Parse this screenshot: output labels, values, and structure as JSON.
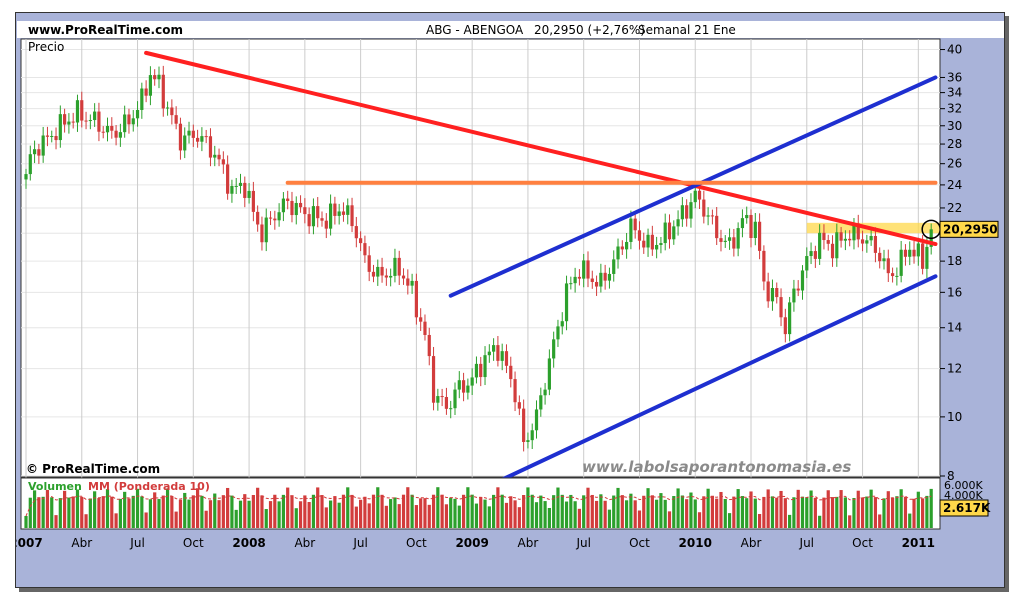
{
  "header": {
    "site": "www.ProRealTime.com",
    "instrument": "ABG - ABENGOA",
    "quote": "20,2950 (+2,76%)",
    "period": "Semanal 21 Ene"
  },
  "price_panel": {
    "label": "Precio",
    "copyright": "© ProRealTime.com",
    "watermark": "www.labolsaporantonomasia.es",
    "last_price_label": "20,2950"
  },
  "volume_panel": {
    "label_volume": "Volumen",
    "label_mm": "MM (Ponderada 10)",
    "tick_labels": [
      "6.000K",
      "4.000K"
    ],
    "last_volume_label": "2.617K"
  },
  "colors": {
    "up_candle": "#2ca02c",
    "down_candle": "#d23c3c",
    "resistance_trend": "#ff2020",
    "channel": "#1e2fd0",
    "horizontal_level": "#ff8040",
    "highlight_box": "#ffd84a",
    "background": "#a9b3d9",
    "panel": "#ffffff"
  },
  "chart_data": {
    "type": "candlestick",
    "title": "ABG - ABENGOA",
    "y_scale": "log",
    "ylim": [
      8,
      41
    ],
    "y_ticks": [
      40,
      36,
      34,
      32,
      30,
      28,
      26,
      24,
      22,
      20,
      18,
      16,
      14,
      12,
      10,
      8
    ],
    "x_tick_labels": [
      "2007",
      "Abr",
      "Jul",
      "Oct",
      "2008",
      "Abr",
      "Jul",
      "Oct",
      "2009",
      "Abr",
      "Jul",
      "Oct",
      "2010",
      "Abr",
      "Jul",
      "Oct",
      "2011"
    ],
    "x_tick_weeks": [
      0,
      13,
      26,
      39,
      52,
      65,
      78,
      91,
      104,
      117,
      130,
      143,
      156,
      169,
      182,
      195,
      208
    ],
    "week_count": 212,
    "close_anchors": [
      [
        0,
        25.0
      ],
      [
        2,
        27.5
      ],
      [
        5,
        28.5
      ],
      [
        8,
        30.0
      ],
      [
        12,
        31.5
      ],
      [
        16,
        30.5
      ],
      [
        20,
        29.0
      ],
      [
        24,
        30.5
      ],
      [
        27,
        33.0
      ],
      [
        29,
        36.5
      ],
      [
        31,
        35.0
      ],
      [
        33,
        32.0
      ],
      [
        36,
        28.5
      ],
      [
        40,
        29.0
      ],
      [
        44,
        27.0
      ],
      [
        48,
        23.5
      ],
      [
        51,
        24.0
      ],
      [
        53,
        21.5
      ],
      [
        55,
        20.0
      ],
      [
        58,
        21.5
      ],
      [
        61,
        22.5
      ],
      [
        65,
        21.5
      ],
      [
        70,
        21.0
      ],
      [
        73,
        22.0
      ],
      [
        76,
        21.0
      ],
      [
        79,
        18.0
      ],
      [
        82,
        17.0
      ],
      [
        87,
        17.5
      ],
      [
        90,
        16.0
      ],
      [
        93,
        13.5
      ],
      [
        95,
        11.0
      ],
      [
        98,
        10.3
      ],
      [
        100,
        11.0
      ],
      [
        104,
        11.5
      ],
      [
        107,
        12.5
      ],
      [
        110,
        13.0
      ],
      [
        114,
        11.0
      ],
      [
        116,
        9.0
      ],
      [
        119,
        10.0
      ],
      [
        121,
        11.5
      ],
      [
        124,
        14.0
      ],
      [
        126,
        16.0
      ],
      [
        129,
        17.5
      ],
      [
        131,
        17.0
      ],
      [
        134,
        16.5
      ],
      [
        138,
        18.5
      ],
      [
        141,
        20.5
      ],
      [
        145,
        19.0
      ],
      [
        148,
        19.5
      ],
      [
        152,
        21.0
      ],
      [
        156,
        23.0
      ],
      [
        158,
        22.0
      ],
      [
        161,
        20.0
      ],
      [
        164,
        19.0
      ],
      [
        167,
        21.0
      ],
      [
        170,
        20.5
      ],
      [
        172,
        16.5
      ],
      [
        175,
        15.5
      ],
      [
        177,
        14.0
      ],
      [
        179,
        16.0
      ],
      [
        182,
        18.0
      ],
      [
        185,
        19.5
      ],
      [
        188,
        19.0
      ],
      [
        192,
        20.0
      ],
      [
        196,
        19.5
      ],
      [
        199,
        18.5
      ],
      [
        201,
        17.0
      ],
      [
        203,
        17.5
      ],
      [
        206,
        19.0
      ],
      [
        209,
        18.0
      ],
      [
        211,
        20.295
      ]
    ],
    "volume_mm": {
      "name": "MM (Ponderada 10)",
      "type": "line"
    },
    "trendlines": [
      {
        "name": "resistance",
        "color": "#ff2020",
        "points": [
          [
            28,
            39.5
          ],
          [
            212,
            19.2
          ]
        ]
      },
      {
        "name": "channel-upper",
        "color": "#1e2fd0",
        "points": [
          [
            99,
            15.8
          ],
          [
            212,
            36.0
          ]
        ]
      },
      {
        "name": "channel-lower",
        "color": "#1e2fd0",
        "points": [
          [
            106,
            7.6
          ],
          [
            212,
            17.0
          ]
        ]
      },
      {
        "name": "horizontal-level",
        "color": "#ff8040",
        "points": [
          [
            61,
            24.2
          ],
          [
            212,
            24.2
          ]
        ]
      }
    ],
    "highlight_zone": [
      20.0,
      20.8
    ],
    "last_price": 20.295
  }
}
